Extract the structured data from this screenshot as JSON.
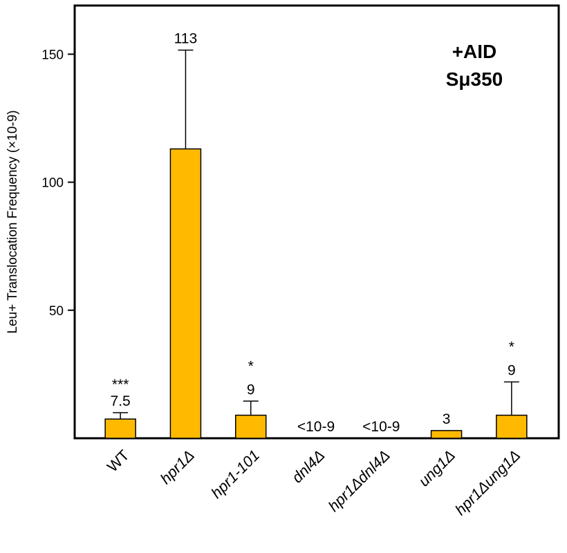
{
  "chart_data": {
    "type": "bar",
    "annotations": [
      "+AID",
      "Sμ350"
    ],
    "y_label": "Leu+ Translocation Frequency (×10-9)",
    "categories": [
      "WT",
      "hpr1Δ",
      "hpr1-101",
      "dnl4Δ",
      "hpr1Δdnl4Δ",
      "ung1Δ",
      "hpr1Δung1Δ"
    ],
    "values": [
      7.5,
      113,
      9,
      null,
      null,
      3,
      9
    ],
    "value_labels": [
      "7.5",
      "113",
      "9",
      "<10-9",
      "<10-9",
      "3",
      "9"
    ],
    "errors": [
      2.5,
      38.6,
      5.5,
      null,
      null,
      null,
      13
    ],
    "significance": [
      "***",
      null,
      "*",
      null,
      null,
      null,
      "*"
    ],
    "color": "#ffba00",
    "ylim": [
      0,
      169
    ],
    "yticks": [
      50,
      100,
      150
    ],
    "grid": false
  }
}
